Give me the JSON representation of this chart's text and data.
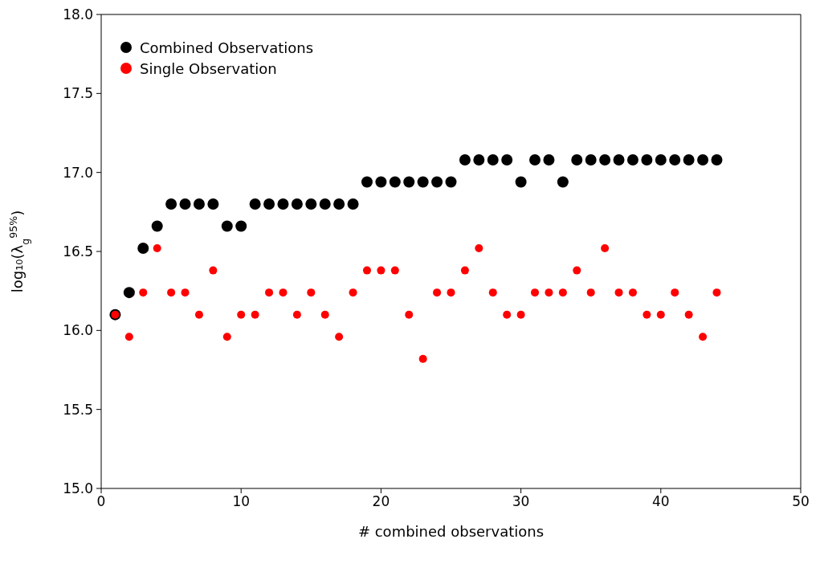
{
  "chart_data": {
    "type": "scatter",
    "xlabel": "# combined observations",
    "ylabel": "log₁₀(λ$_{g}$$^{95%}$)",
    "x": [
      1,
      2,
      3,
      4,
      5,
      6,
      7,
      8,
      9,
      10,
      11,
      12,
      13,
      14,
      15,
      16,
      17,
      18,
      19,
      20,
      21,
      22,
      23,
      24,
      25,
      26,
      27,
      28,
      29,
      30,
      31,
      32,
      33,
      34,
      35,
      36,
      37,
      38,
      39,
      40,
      41,
      42,
      43,
      44
    ],
    "series": [
      {
        "name": "Combined Observations",
        "color": "#000000",
        "values": [
          16.1,
          16.24,
          16.52,
          16.66,
          16.8,
          16.8,
          16.8,
          16.8,
          16.66,
          16.66,
          16.8,
          16.8,
          16.8,
          16.8,
          16.8,
          16.8,
          16.8,
          16.8,
          16.94,
          16.94,
          16.94,
          16.94,
          16.94,
          16.94,
          16.94,
          17.08,
          17.08,
          17.08,
          17.08,
          16.94,
          17.08,
          17.08,
          16.94,
          17.08,
          17.08,
          17.08,
          17.08,
          17.08,
          17.08,
          17.08,
          17.08,
          17.08,
          17.08,
          17.08
        ]
      },
      {
        "name": "Single Observation",
        "color": "#ff0000",
        "values": [
          16.1,
          15.96,
          16.24,
          16.52,
          16.24,
          16.24,
          16.1,
          16.38,
          15.96,
          16.1,
          16.1,
          16.24,
          16.24,
          16.1,
          16.24,
          16.1,
          15.96,
          16.24,
          16.38,
          16.38,
          16.38,
          16.1,
          15.82,
          16.24,
          16.24,
          16.38,
          16.52,
          16.24,
          16.1,
          16.1,
          16.24,
          16.24,
          16.24,
          16.38,
          16.24,
          16.52,
          16.24,
          16.24,
          16.1,
          16.1,
          16.24,
          16.1,
          15.96,
          16.24
        ]
      }
    ],
    "xlim": [
      0,
      50
    ],
    "xticks": [
      0,
      10,
      20,
      30,
      40,
      50
    ],
    "ylim": [
      15,
      18
    ],
    "yticks": [
      {
        "value": 15,
        "label": "15.0"
      },
      {
        "value": 15.5,
        "label": "15.5"
      },
      {
        "value": 16,
        "label": "16.0"
      },
      {
        "value": 16.5,
        "label": "16.5"
      },
      {
        "value": 17,
        "label": "17.0"
      },
      {
        "value": 17.5,
        "label": "17.5"
      },
      {
        "value": 18,
        "label": "18.0"
      }
    ],
    "grid": false,
    "legend": "top left",
    "marker": "circle"
  }
}
